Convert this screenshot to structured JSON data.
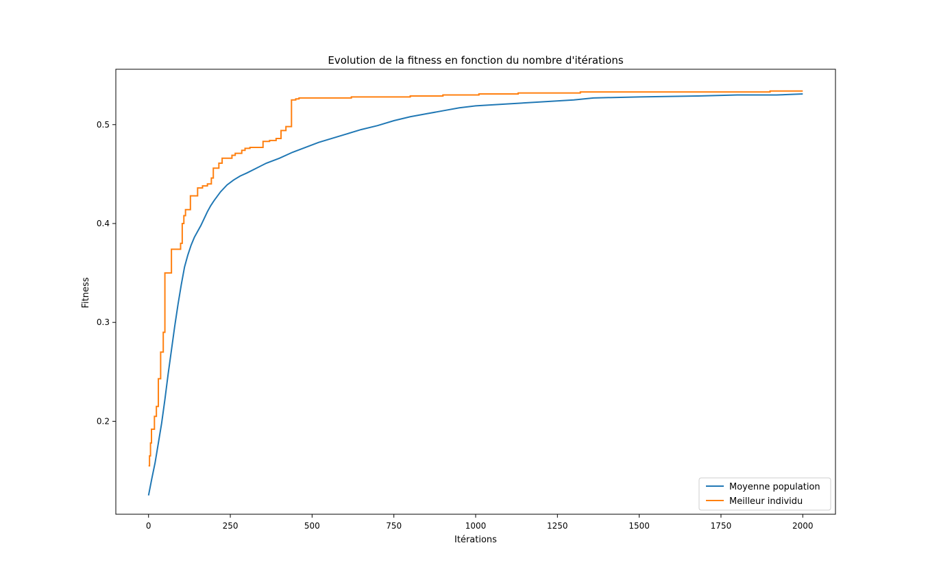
{
  "chart_data": {
    "type": "line",
    "title": "Evolution de la fitness en fonction du nombre d'itérations",
    "xlabel": "Itérations",
    "ylabel": "Fitness",
    "xlim": [
      -100,
      2100
    ],
    "ylim": [
      0.106,
      0.556
    ],
    "xticks": [
      0,
      250,
      500,
      750,
      1000,
      1250,
      1500,
      1750,
      2000
    ],
    "yticks": [
      0.2,
      0.3,
      0.4,
      0.5
    ],
    "xtick_labels": [
      "0",
      "250",
      "500",
      "750",
      "1000",
      "1250",
      "1500",
      "1750",
      "2000"
    ],
    "ytick_labels": [
      "0.2",
      "0.3",
      "0.4",
      "0.5"
    ],
    "grid": false,
    "legend_position": "lower right",
    "series": [
      {
        "name": "Moyenne population",
        "color": "#1f77b4",
        "step": false,
        "points": [
          [
            0,
            0.125
          ],
          [
            10,
            0.142
          ],
          [
            20,
            0.158
          ],
          [
            30,
            0.178
          ],
          [
            40,
            0.198
          ],
          [
            50,
            0.222
          ],
          [
            60,
            0.248
          ],
          [
            70,
            0.272
          ],
          [
            80,
            0.296
          ],
          [
            90,
            0.318
          ],
          [
            100,
            0.338
          ],
          [
            110,
            0.356
          ],
          [
            120,
            0.368
          ],
          [
            130,
            0.378
          ],
          [
            140,
            0.386
          ],
          [
            150,
            0.392
          ],
          [
            160,
            0.398
          ],
          [
            170,
            0.405
          ],
          [
            180,
            0.412
          ],
          [
            190,
            0.418
          ],
          [
            200,
            0.423
          ],
          [
            220,
            0.432
          ],
          [
            240,
            0.439
          ],
          [
            260,
            0.444
          ],
          [
            280,
            0.448
          ],
          [
            300,
            0.451
          ],
          [
            330,
            0.456
          ],
          [
            360,
            0.461
          ],
          [
            400,
            0.466
          ],
          [
            440,
            0.472
          ],
          [
            480,
            0.477
          ],
          [
            520,
            0.482
          ],
          [
            560,
            0.486
          ],
          [
            600,
            0.49
          ],
          [
            650,
            0.495
          ],
          [
            700,
            0.499
          ],
          [
            750,
            0.504
          ],
          [
            800,
            0.508
          ],
          [
            850,
            0.511
          ],
          [
            900,
            0.514
          ],
          [
            950,
            0.517
          ],
          [
            1000,
            0.519
          ],
          [
            1100,
            0.521
          ],
          [
            1200,
            0.523
          ],
          [
            1300,
            0.525
          ],
          [
            1360,
            0.527
          ],
          [
            1500,
            0.528
          ],
          [
            1680,
            0.529
          ],
          [
            1800,
            0.53
          ],
          [
            1920,
            0.53
          ],
          [
            2000,
            0.531
          ]
        ]
      },
      {
        "name": "Meilleur individu",
        "color": "#ff7f0e",
        "step": true,
        "points": [
          [
            0,
            0.155
          ],
          [
            3,
            0.165
          ],
          [
            6,
            0.178
          ],
          [
            9,
            0.192
          ],
          [
            18,
            0.205
          ],
          [
            24,
            0.215
          ],
          [
            30,
            0.243
          ],
          [
            37,
            0.27
          ],
          [
            45,
            0.29
          ],
          [
            50,
            0.35
          ],
          [
            70,
            0.374
          ],
          [
            98,
            0.38
          ],
          [
            103,
            0.4
          ],
          [
            108,
            0.408
          ],
          [
            113,
            0.414
          ],
          [
            128,
            0.428
          ],
          [
            150,
            0.436
          ],
          [
            165,
            0.438
          ],
          [
            180,
            0.44
          ],
          [
            192,
            0.446
          ],
          [
            198,
            0.456
          ],
          [
            215,
            0.461
          ],
          [
            225,
            0.466
          ],
          [
            255,
            0.469
          ],
          [
            265,
            0.471
          ],
          [
            285,
            0.474
          ],
          [
            295,
            0.476
          ],
          [
            310,
            0.477
          ],
          [
            350,
            0.483
          ],
          [
            370,
            0.484
          ],
          [
            390,
            0.486
          ],
          [
            405,
            0.494
          ],
          [
            420,
            0.498
          ],
          [
            437,
            0.525
          ],
          [
            450,
            0.526
          ],
          [
            460,
            0.527
          ],
          [
            550,
            0.527
          ],
          [
            620,
            0.528
          ],
          [
            800,
            0.529
          ],
          [
            900,
            0.53
          ],
          [
            1010,
            0.531
          ],
          [
            1050,
            0.531
          ],
          [
            1130,
            0.532
          ],
          [
            1180,
            0.532
          ],
          [
            1320,
            0.533
          ],
          [
            1500,
            0.533
          ],
          [
            1750,
            0.533
          ],
          [
            1900,
            0.534
          ],
          [
            2000,
            0.534
          ]
        ]
      }
    ]
  }
}
